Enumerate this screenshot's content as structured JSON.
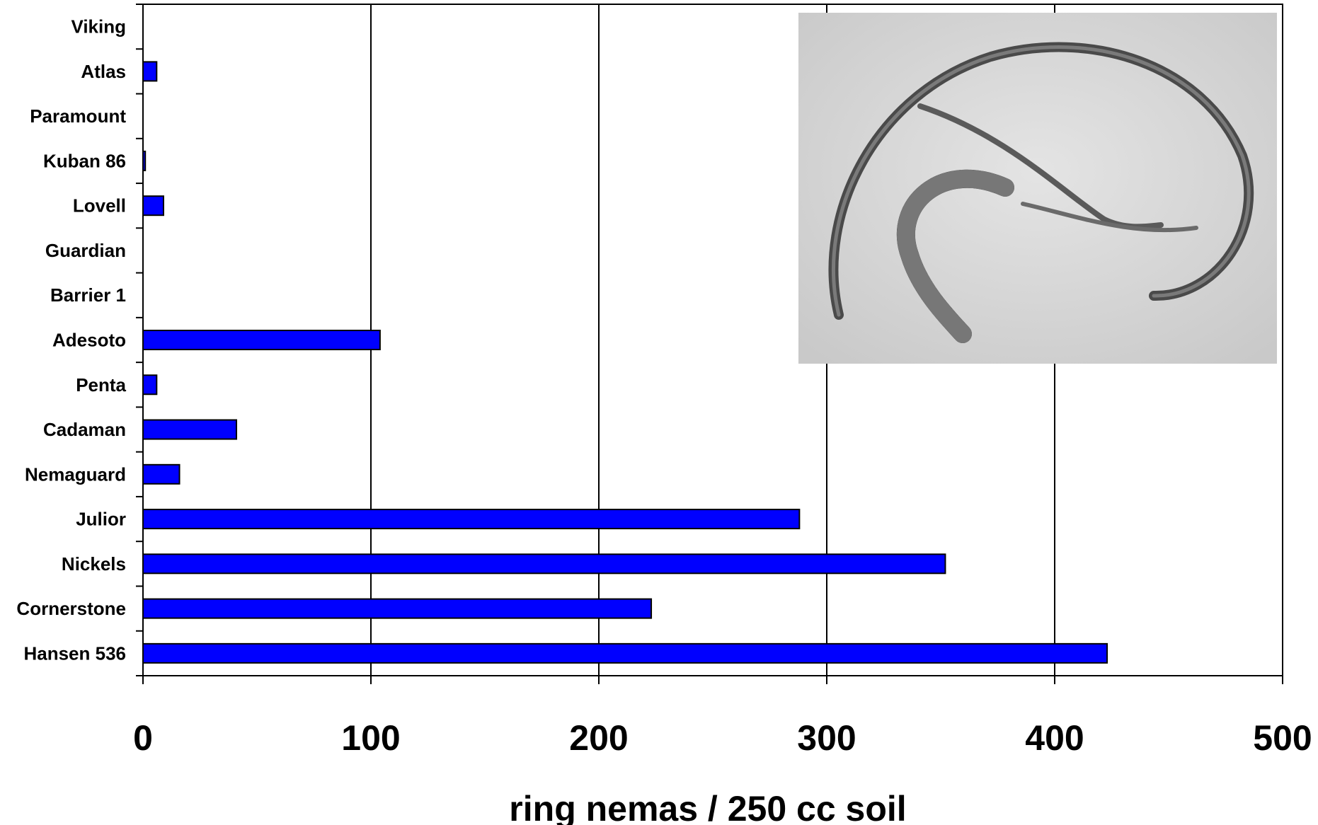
{
  "chart_data": {
    "type": "bar",
    "orientation": "horizontal",
    "categories": [
      "Viking",
      "Atlas",
      "Paramount",
      "Kuban 86",
      "Lovell",
      "Guardian",
      "Barrier 1",
      "Adesoto",
      "Penta",
      "Cadaman",
      "Nemaguard",
      "Julior",
      "Nickels",
      "Cornerstone",
      "Hansen 536"
    ],
    "values": [
      0,
      6,
      0,
      1,
      9,
      0,
      0,
      104,
      6,
      41,
      16,
      288,
      352,
      223,
      423
    ],
    "title": "",
    "xlabel": "ring nemas / 250 cc soil",
    "ylabel": "",
    "xlim": [
      0,
      500
    ],
    "xticks": [
      0,
      100,
      200,
      300,
      400,
      500
    ],
    "grid": "vertical",
    "legend": "none",
    "bar_color": "#0000ff",
    "bar_edge_color": "#000000",
    "inset": "photograph of ring nematodes (top-right)"
  }
}
